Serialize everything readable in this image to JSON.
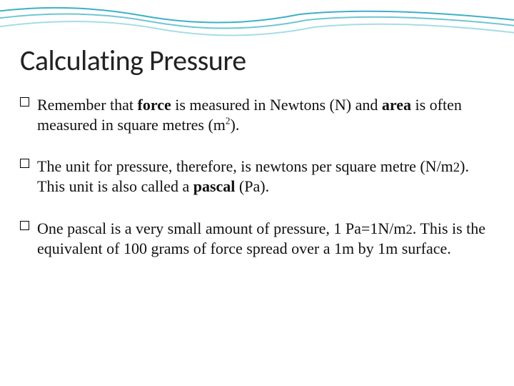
{
  "slide": {
    "title": "Calculating Pressure",
    "title_fontsize": 40,
    "title_color": "#222222",
    "body_fontsize": 22,
    "body_color": "#111111",
    "background_color": "#ffffff",
    "bullet_gap": 30
  },
  "waves": {
    "colors": [
      "#3fb0c4",
      "#6fc6d4",
      "#a6dde5"
    ],
    "stroke_width": 2
  },
  "bullets": [
    {
      "html": "Remember that <b>force</b> is measured in Newtons (N) and <b>area</b> is often measured in square metres (m<sup>2</sup>)."
    },
    {
      "html": "The unit for pressure, therefore, is newtons per square metre (N/m<span class='sub2'>2</span>). This unit is also called a <b>pascal</b> (Pa)."
    },
    {
      "html": "One pascal is a very small amount of pressure, 1 Pa=1N/m<span class='sub2'>2</span>. This is the equivalent of 100 grams of force spread over a 1m by 1m surface."
    }
  ]
}
